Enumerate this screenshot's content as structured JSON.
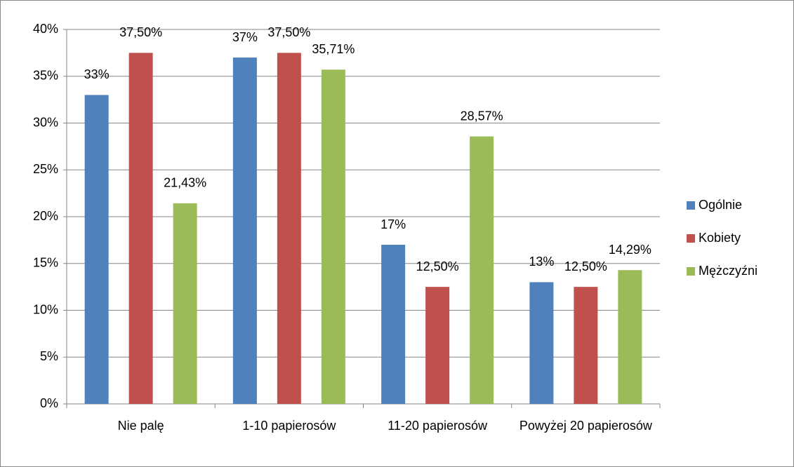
{
  "chart_data": {
    "type": "bar",
    "categories": [
      "Nie palę",
      "1-10 papierosów",
      "11-20 papierosów",
      "Powyżej 20 papierosów"
    ],
    "series": [
      {
        "name": "Ogólnie",
        "color": "#4f81bd",
        "values": [
          33,
          37,
          17,
          13
        ],
        "value_labels": [
          "33%",
          "37%",
          "17%",
          "13%"
        ]
      },
      {
        "name": "Kobiety",
        "color": "#c0504d",
        "values": [
          37.5,
          37.5,
          12.5,
          12.5
        ],
        "value_labels": [
          "37,50%",
          "37,50%",
          "12,50%",
          "12,50%"
        ]
      },
      {
        "name": "Mężczyźni",
        "color": "#9bbb59",
        "values": [
          21.43,
          35.71,
          28.57,
          14.29
        ],
        "value_labels": [
          "21,43%",
          "35,71%",
          "28,57%",
          "14,29%"
        ]
      }
    ],
    "ylim": [
      0,
      40
    ],
    "yticks": [
      {
        "value": 0,
        "label": "0%"
      },
      {
        "value": 5,
        "label": "5%"
      },
      {
        "value": 10,
        "label": "10%"
      },
      {
        "value": 15,
        "label": "15%"
      },
      {
        "value": 20,
        "label": "20%"
      },
      {
        "value": 25,
        "label": "25%"
      },
      {
        "value": 30,
        "label": "30%"
      },
      {
        "value": 35,
        "label": "35%"
      },
      {
        "value": 40,
        "label": "40%"
      }
    ],
    "grid": true,
    "legend": "right"
  }
}
